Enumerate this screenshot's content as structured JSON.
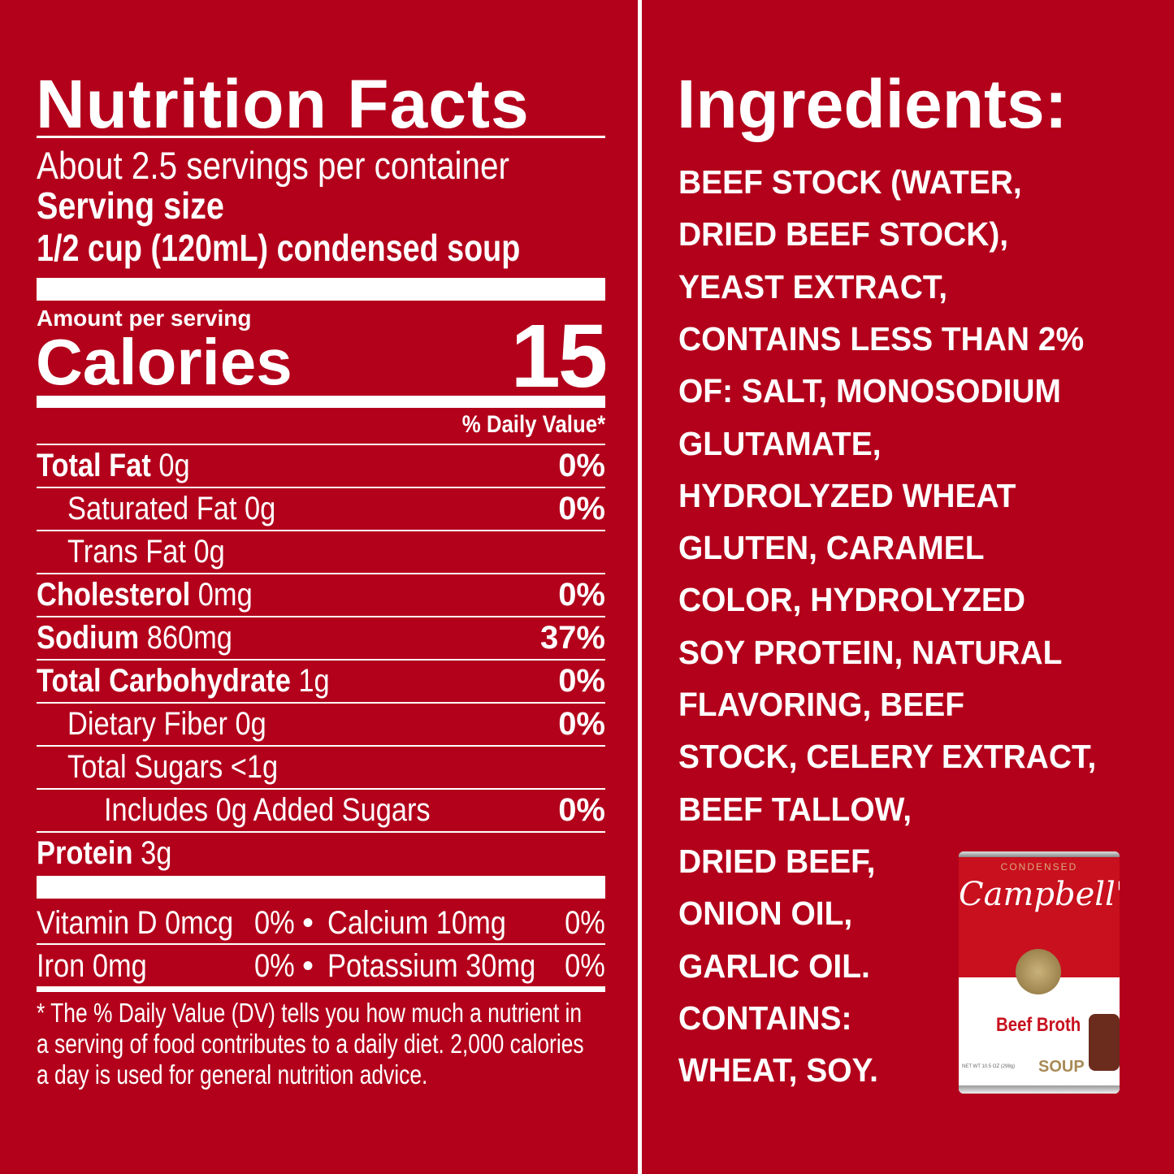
{
  "nutrition": {
    "title": "Nutrition Facts",
    "servings": "About 2.5 servings per container",
    "serving_size_label": "Serving size",
    "serving_size": "1/2 cup (120mL) condensed soup",
    "amount_per_serving": "Amount per serving",
    "calories_label": "Calories",
    "calories": "15",
    "dv_header": "% Daily Value*",
    "rows": [
      {
        "bold": "Total Fat",
        "amount": " 0g",
        "dv": "0%",
        "indent": 0
      },
      {
        "bold": "",
        "amount": "Saturated Fat 0g",
        "dv": "0%",
        "indent": 1
      },
      {
        "bold": "",
        "amount": "Trans Fat 0g",
        "dv": "",
        "indent": 1
      },
      {
        "bold": "Cholesterol",
        "amount": " 0mg",
        "dv": "0%",
        "indent": 0
      },
      {
        "bold": "Sodium",
        "amount": " 860mg",
        "dv": "37%",
        "indent": 0
      },
      {
        "bold": "Total Carbohydrate",
        "amount": " 1g",
        "dv": "0%",
        "indent": 0
      },
      {
        "bold": "",
        "amount": "Dietary Fiber 0g",
        "dv": "0%",
        "indent": 1
      },
      {
        "bold": "",
        "amount": "Total Sugars <1g",
        "dv": "",
        "indent": 1
      },
      {
        "bold": "",
        "amount": "Includes 0g Added Sugars",
        "dv": "0%",
        "indent": 2
      },
      {
        "bold": "Protein",
        "amount": " 3g",
        "dv": "",
        "indent": 0
      }
    ],
    "micros": [
      {
        "a": "Vitamin D 0mcg",
        "a_dv": "0%",
        "b": "Calcium 10mg",
        "b_dv": "0%"
      },
      {
        "a": "Iron 0mg",
        "a_dv": "0%",
        "b": "Potassium 30mg",
        "b_dv": "0%"
      }
    ],
    "bullet": "•",
    "footnote": [
      "* The % Daily Value (DV) tells you how much a nutrient in",
      "a serving of food contributes to a daily diet. 2,000 calories",
      "a day is used for general nutrition advice."
    ]
  },
  "ingredients": {
    "title": "Ingredients:",
    "lines": [
      "BEEF STOCK (WATER,",
      "DRIED BEEF STOCK),",
      "YEAST EXTRACT,",
      "CONTAINS LESS THAN 2%",
      "OF: SALT, MONOSODIUM",
      "GLUTAMATE,",
      "HYDROLYZED WHEAT",
      "GLUTEN, CARAMEL",
      "COLOR, HYDROLYZED",
      "SOY PROTEIN, NATURAL",
      "FLAVORING, BEEF",
      "STOCK, CELERY EXTRACT,",
      "BEEF TALLOW,",
      "DRIED BEEF,",
      "ONION OIL,",
      "GARLIC OIL.",
      "CONTAINS:",
      "WHEAT, SOY."
    ]
  },
  "can": {
    "top": "CONDENSED",
    "brand": "Campbell's",
    "flavor": "Beef Broth",
    "type": "SOUP",
    "net_wt": "NET WT 10.5 OZ (298g)"
  },
  "colors": {
    "background": "#b3001b",
    "text": "#ffffff",
    "can_gold": "#a88a55"
  }
}
